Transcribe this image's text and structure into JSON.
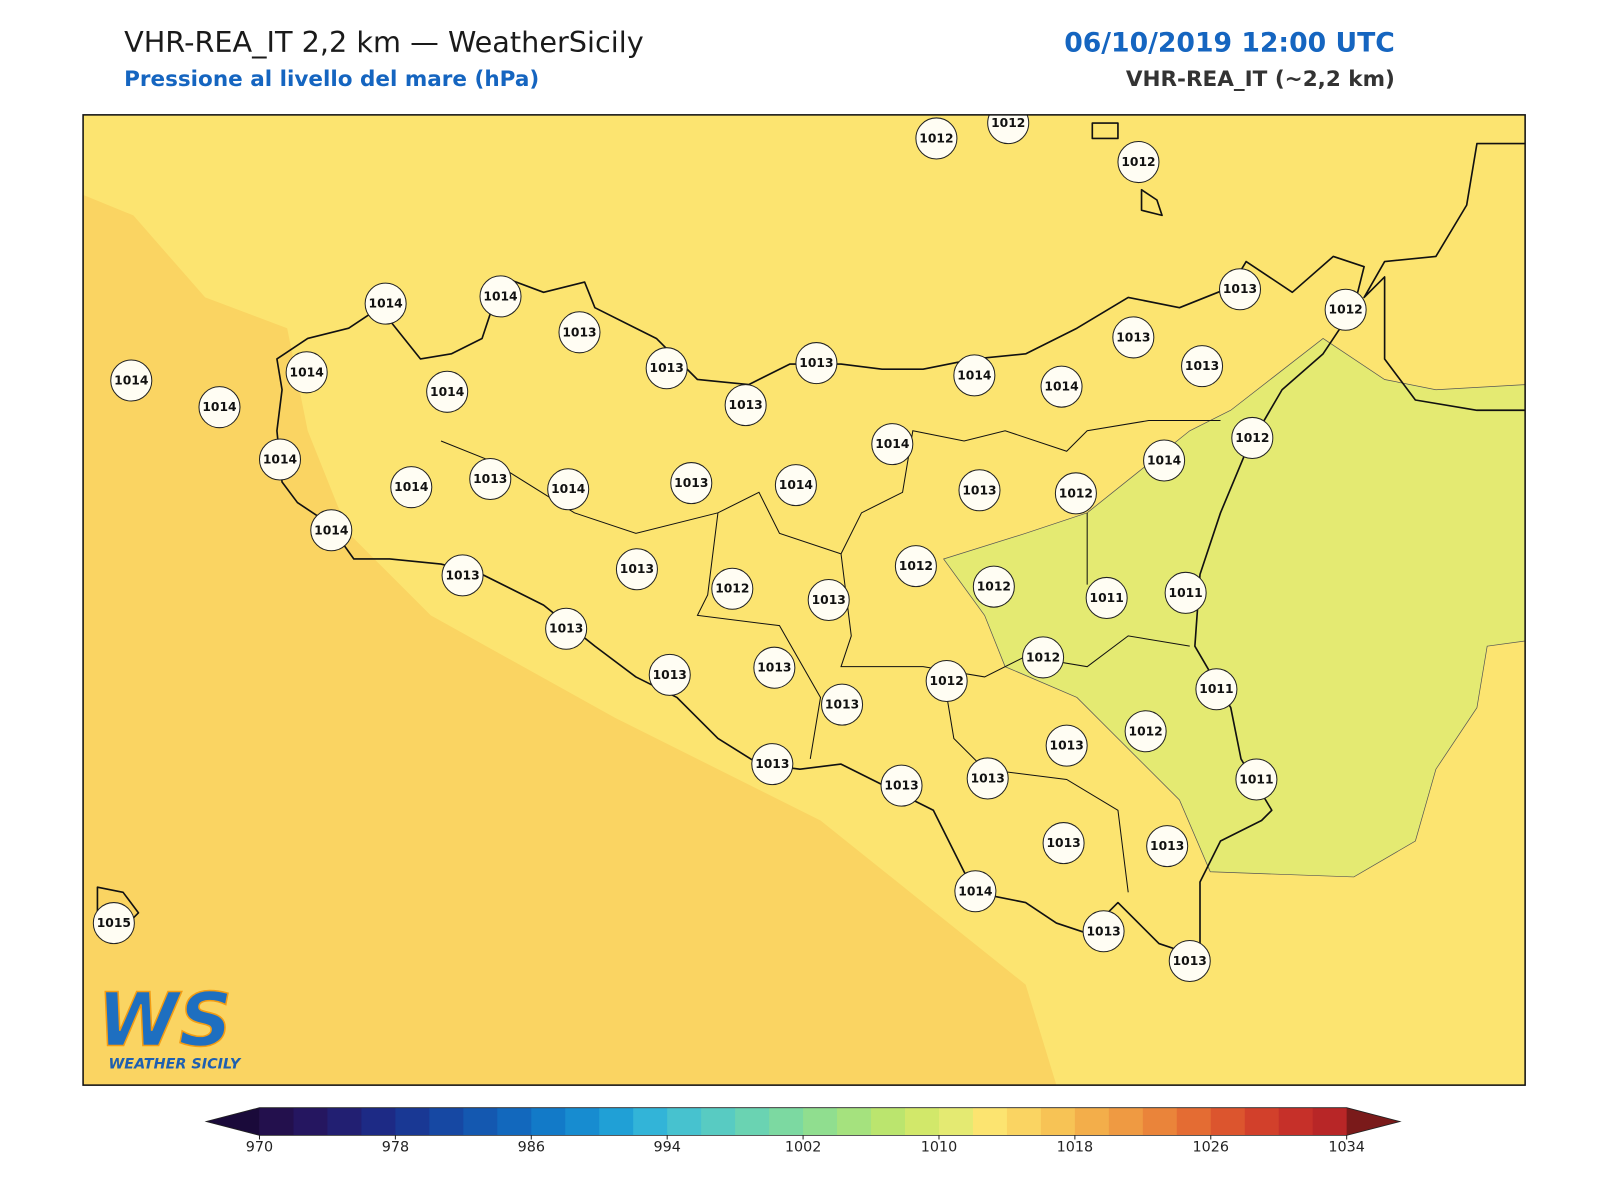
{
  "header": {
    "title": "VHR-REA_IT 2,2 km — WeatherSicily",
    "subtitle": "Pressione al livello del mare (hPa)",
    "time": "06/10/2019 12:00 UTC",
    "model": "VHR-REA_IT (~2,2 km)"
  },
  "map": {
    "stations": [
      1012,
      1012,
      1012,
      1013,
      1012,
      1014,
      1014,
      1013,
      1013,
      1013,
      1013,
      1013,
      1014,
      1014,
      1014,
      1013,
      1014,
      1014,
      1014,
      1012,
      1014,
      1014,
      1014,
      1014,
      1013,
      1014,
      1013,
      1014,
      1013,
      1012,
      1014,
      1013,
      1013,
      1012,
      1012,
      1013,
      1012,
      1011,
      1011,
      1013,
      1012,
      1013,
      1013,
      1012,
      1011,
      1013,
      1012,
      1013,
      1013,
      1013,
      1013,
      1011,
      1013,
      1013,
      1014,
      1015,
      1013,
      1013
    ]
  },
  "colorbar": {
    "ticks": [
      970,
      978,
      986,
      994,
      1002,
      1010,
      1018,
      1026,
      1034
    ],
    "colors": [
      "#23104d",
      "#251660",
      "#221f72",
      "#1d2a85",
      "#193894",
      "#1648a3",
      "#1458b0",
      "#1268bd",
      "#127ac8",
      "#178cd0",
      "#20a0d6",
      "#32b4d8",
      "#47c2cf",
      "#58cbc2",
      "#6ad3b2",
      "#7cd9a1",
      "#90de8f",
      "#a5e27e",
      "#bbe56e",
      "#d2e86a",
      "#e4ea72",
      "#fce470",
      "#fad462",
      "#f7c355",
      "#f3ae4a",
      "#ef9a42",
      "#ea843a",
      "#e46c33",
      "#dc552e",
      "#d2402b",
      "#c63029",
      "#b82627"
    ],
    "under": "#1a0a3a",
    "over": "#7a1a1a"
  },
  "logo": {
    "mark": "WS",
    "name": "WEATHER SICILY"
  }
}
